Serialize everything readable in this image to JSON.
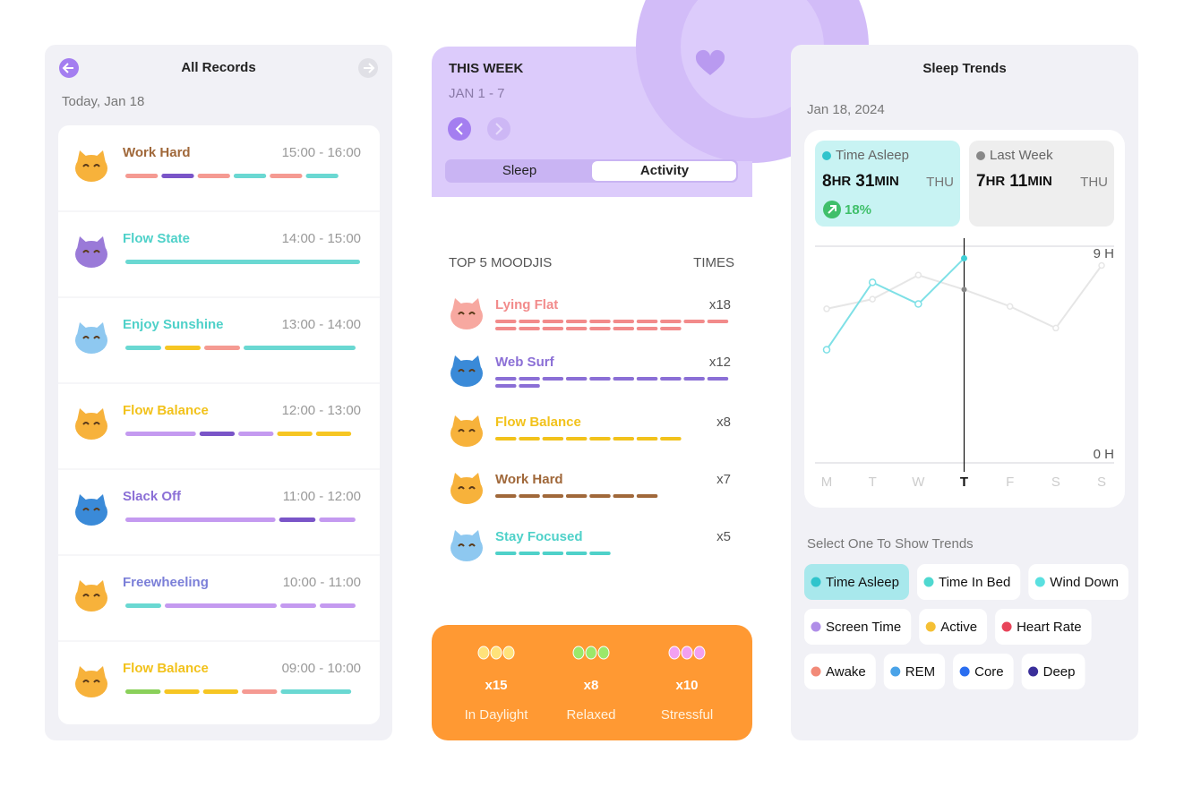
{
  "all_records": {
    "title": "All Records",
    "date": "Today, Jan 18",
    "records": [
      {
        "name": "Work Hard",
        "time": "15:00 - 16:00",
        "color": "#a0683a"
      },
      {
        "name": "Flow State",
        "time": "14:00 - 15:00",
        "color": "#4fd1c9"
      },
      {
        "name": "Enjoy Sunshine",
        "time": "13:00 - 14:00",
        "color": "#4fd1c9"
      },
      {
        "name": "Flow Balance",
        "time": "12:00 - 13:00",
        "color": "#f2c21b"
      },
      {
        "name": "Slack Off",
        "time": "11:00 - 12:00",
        "color": "#8b6fd6"
      },
      {
        "name": "Freewheeling",
        "time": "10:00 - 11:00",
        "color": "#7b7fd8"
      },
      {
        "name": "Flow Balance",
        "time": "09:00 - 10:00",
        "color": "#f2c21b"
      }
    ]
  },
  "this_week": {
    "title": "THIS WEEK",
    "range": "JAN 1 - 7",
    "tabs": [
      "Sleep",
      "Activity"
    ]
  },
  "top_moodjis": {
    "title": "TOP 5 MOODJIS",
    "times_header": "TIMES",
    "items": [
      {
        "name": "Lying Flat",
        "count": 18,
        "count_label": "x18",
        "color": "#f28b8b"
      },
      {
        "name": "Web Surf",
        "count": 12,
        "count_label": "x12",
        "color": "#8b6fd6"
      },
      {
        "name": "Flow Balance",
        "count": 8,
        "count_label": "x8",
        "color": "#f2c21b"
      },
      {
        "name": "Work Hard",
        "count": 7,
        "count_label": "x7",
        "color": "#a0683a"
      },
      {
        "name": "Stay Focused",
        "count": 5,
        "count_label": "x5",
        "color": "#4fd1c9"
      }
    ]
  },
  "summary": [
    {
      "count": 15,
      "count_label": "x15",
      "name": "In Daylight"
    },
    {
      "count": 8,
      "count_label": "x8",
      "name": "Relaxed"
    },
    {
      "count": 10,
      "count_label": "x10",
      "name": "Stressful"
    }
  ],
  "sleep_trends": {
    "title": "Sleep Trends",
    "date": "Jan 18, 2024",
    "cards": [
      {
        "value_parts": [
          "8",
          "HR",
          "31",
          "MIN"
        ],
        "day": "THU",
        "change": "18%"
      },
      {
        "value_parts": [
          "7",
          "HR",
          "11",
          "MIN"
        ],
        "day": "THU"
      }
    ],
    "prompt": "Select One To Show Trends",
    "filters": [
      {
        "name": "Time Asleep",
        "color": "#2fc4cc",
        "selected": true
      },
      {
        "name": "Time In Bed",
        "color": "#4fd8d0"
      },
      {
        "name": "Wind Down",
        "color": "#5ae0e0"
      },
      {
        "name": "Screen Time",
        "color": "#b08ee8"
      },
      {
        "name": "Active",
        "color": "#f5c034"
      },
      {
        "name": "Heart Rate",
        "color": "#e8445a"
      },
      {
        "name": "Awake",
        "color": "#f28a78"
      },
      {
        "name": "REM",
        "color": "#4aa3e8"
      },
      {
        "name": "Core",
        "color": "#2a6ef0"
      },
      {
        "name": "Deep",
        "color": "#3a2f9a"
      }
    ]
  },
  "chart_data": {
    "type": "line",
    "categories": [
      "M",
      "T",
      "W",
      "T",
      "F",
      "S",
      "S"
    ],
    "highlight": 3,
    "series": [
      {
        "name": "Time Asleep",
        "color": "#7ee0e6",
        "values": [
          4.7,
          7.5,
          6.6,
          8.5,
          null,
          null,
          null
        ]
      },
      {
        "name": "Last Week",
        "color": "#e6e6e6",
        "values": [
          6.4,
          6.8,
          7.8,
          7.2,
          6.5,
          5.6,
          8.2
        ]
      }
    ],
    "ylim": [
      0,
      9
    ],
    "yticks": [
      {
        "value": 0,
        "label": "0 H"
      },
      {
        "value": 9,
        "label": "9 H"
      }
    ]
  }
}
